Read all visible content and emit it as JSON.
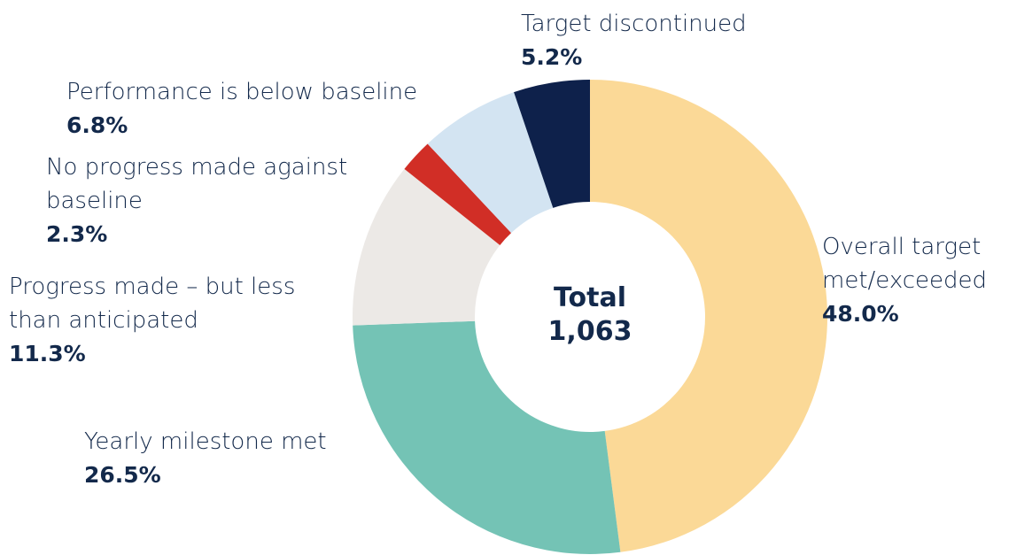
{
  "chart_data": {
    "type": "donut",
    "categories": [
      "Overall target met/exceeded",
      "Yearly milestone met",
      "Progress made – but less than anticipated",
      "No progress made against baseline",
      "Performance is below baseline",
      "Target discontinued"
    ],
    "values": [
      48.0,
      26.5,
      11.3,
      2.3,
      6.8,
      5.2
    ],
    "value_labels": [
      "48.0%",
      "26.5%",
      "11.3%",
      "2.3%",
      "6.8%",
      "5.2%"
    ],
    "colors": [
      "#fbd997",
      "#74c3b5",
      "#ece9e6",
      "#d12e26",
      "#d3e4f2",
      "#0e214b"
    ],
    "center_text": [
      "Total",
      "1,063"
    ]
  }
}
